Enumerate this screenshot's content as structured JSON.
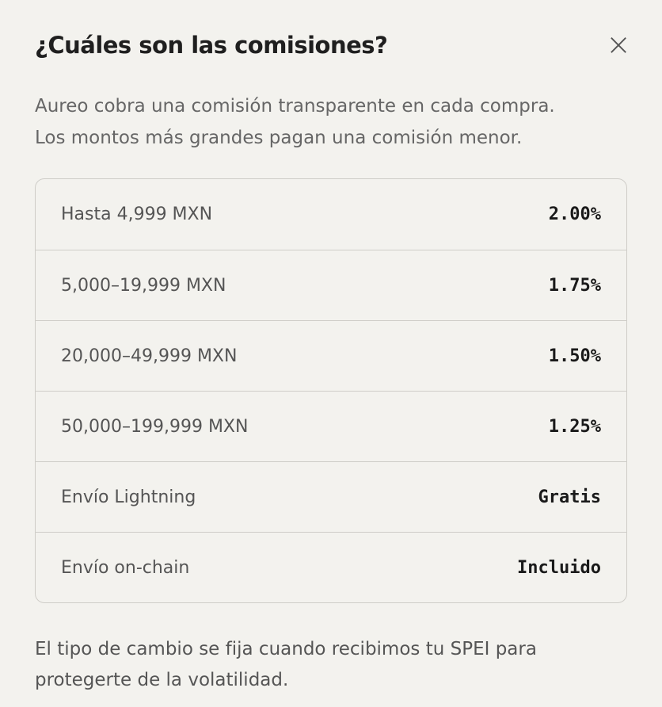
{
  "dialog": {
    "title": "¿Cuáles son las comisiones?",
    "close": "×",
    "intro": [
      "Aureo cobra una comisión transparente en cada compra.",
      "Los montos más grandes pagan una comisión menor."
    ],
    "table": {
      "rows": [
        [
          "Hasta 4,999 MXN",
          "2.00%"
        ],
        [
          "5,000–19,999 MXN",
          "1.75%"
        ],
        [
          "20,000–49,999 MXN",
          "1.50%"
        ],
        [
          "50,000–199,999 MXN",
          "1.25%"
        ],
        [
          "Envío Lightning",
          "Gratis"
        ],
        [
          "Envío on-chain",
          "Incluido"
        ]
      ]
    },
    "footer": [
      "El tipo de cambio se fija cuando recibimos tu SPEI para",
      "protegerte de la volatilidad."
    ]
  }
}
